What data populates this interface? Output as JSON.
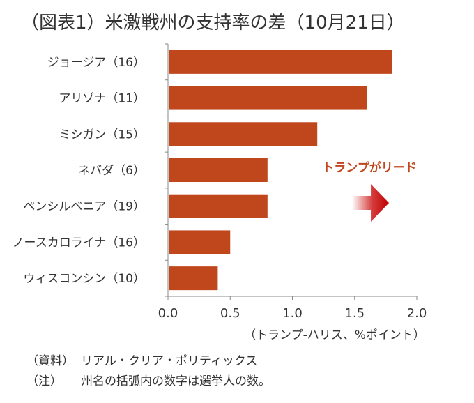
{
  "title": "（図表1）米激戦州の支持率の差（10月21日）",
  "chart_data": {
    "type": "bar",
    "orientation": "horizontal",
    "categories": [
      "ジョージア（16）",
      "アリゾナ（11）",
      "ミシガン（15）",
      "ネバダ（6）",
      "ペンシルベニア（19）",
      "ノースカロライナ（16）",
      "ウィスコンシン（10）"
    ],
    "values": [
      1.8,
      1.6,
      1.2,
      0.8,
      0.8,
      0.5,
      0.4
    ],
    "xlim": [
      0,
      2.0
    ],
    "xticks": [
      "0.0",
      "0.5",
      "1.0",
      "1.5",
      "2.0"
    ],
    "xticks_values": [
      0,
      0.5,
      1.0,
      1.5,
      2.0
    ],
    "xlabel": "（トランプ‐ハリス、%ポイント）",
    "bar_color": "#c0461b",
    "grid": false,
    "annotation": "トランプがリード",
    "annotation_color": "#c0461b",
    "arrow_color": "#c00000"
  },
  "notes": [
    {
      "head": "（資料）",
      "text": "リアル・クリア・ポリティックス"
    },
    {
      "head": "（注）",
      "text": "州名の括弧内の数字は選挙人の数。"
    }
  ]
}
